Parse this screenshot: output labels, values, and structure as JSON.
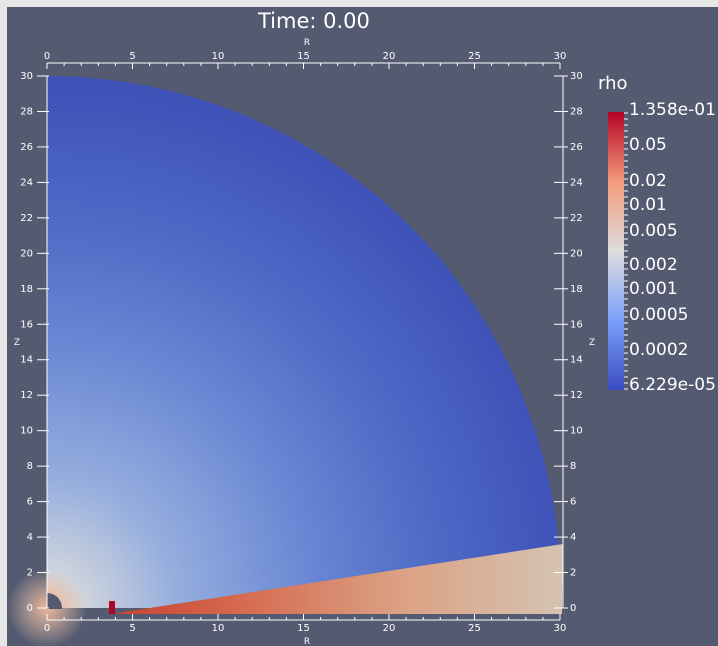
{
  "title": "Time: 0.00",
  "axes": {
    "x_label": "R",
    "y_label": "Z",
    "range": [
      0,
      30
    ],
    "ticks": [
      "0",
      "5",
      "10",
      "15",
      "20",
      "25",
      "30"
    ],
    "minor_step": 1,
    "z_ticks": [
      "0",
      "2",
      "4",
      "6",
      "8",
      "10",
      "12",
      "14",
      "16",
      "18",
      "20",
      "22",
      "24",
      "26",
      "28",
      "30"
    ]
  },
  "legend": {
    "title": "rho",
    "max_label": "1.358e-01",
    "min_label": "6.229e-05",
    "labels": [
      "0.05",
      "0.02",
      "0.01",
      "0.005",
      "0.002",
      "0.001",
      "0.0005",
      "0.0002"
    ],
    "colors": {
      "low": "#3b4cc0",
      "mid": "#dddddd",
      "high": "#b40426"
    }
  },
  "colors": {
    "background": "#545a70",
    "frame": "#e6e6e6",
    "text": "#ffffff"
  }
}
